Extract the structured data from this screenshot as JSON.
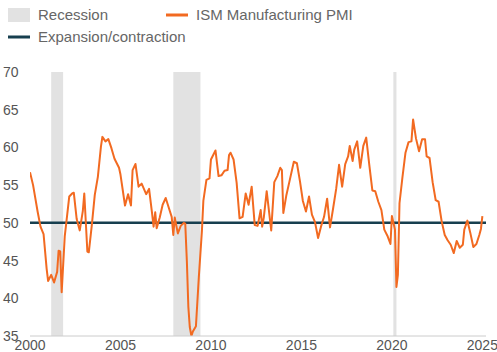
{
  "chart_data": {
    "type": "line",
    "xlim": [
      2000,
      2025.2
    ],
    "xticks": [
      2000,
      2005,
      2010,
      2015,
      2020,
      2025
    ],
    "ylim": [
      35,
      70
    ],
    "yticks": [
      35,
      40,
      45,
      50,
      55,
      60,
      65,
      70
    ],
    "grid": false,
    "legend": "top-left",
    "recessions": {
      "name": "Recession",
      "color": "#e2e2e2",
      "periods": [
        [
          2001.17,
          2001.83
        ],
        [
          2007.92,
          2009.42
        ],
        [
          2020.08,
          2020.25
        ]
      ]
    },
    "reference_line": {
      "name": "Expansion/contraction",
      "value": 50,
      "color": "#173f4f"
    },
    "series": [
      {
        "name": "ISM Manufacturing PMI",
        "color": "#f26a21",
        "x": [
          2000.0,
          2000.17,
          2000.42,
          2000.58,
          2000.75,
          2000.92,
          2001.0,
          2001.17,
          2001.33,
          2001.5,
          2001.58,
          2001.67,
          2001.75,
          2001.92,
          2002.0,
          2002.17,
          2002.33,
          2002.42,
          2002.58,
          2002.75,
          2002.92,
          2003.0,
          2003.17,
          2003.25,
          2003.42,
          2003.58,
          2003.75,
          2003.92,
          2004.0,
          2004.17,
          2004.33,
          2004.5,
          2004.67,
          2004.92,
          2005.0,
          2005.25,
          2005.42,
          2005.58,
          2005.67,
          2005.83,
          2006.0,
          2006.17,
          2006.42,
          2006.58,
          2006.75,
          2006.83,
          2006.92,
          2007.0,
          2007.17,
          2007.33,
          2007.5,
          2007.67,
          2007.83,
          2007.92,
          2008.0,
          2008.17,
          2008.33,
          2008.5,
          2008.58,
          2008.67,
          2008.75,
          2008.83,
          2008.92,
          2009.0,
          2009.17,
          2009.33,
          2009.5,
          2009.58,
          2009.75,
          2009.92,
          2010.0,
          2010.25,
          2010.42,
          2010.58,
          2010.75,
          2010.92,
          2011.0,
          2011.08,
          2011.25,
          2011.42,
          2011.58,
          2011.75,
          2011.92,
          2012.08,
          2012.25,
          2012.42,
          2012.58,
          2012.75,
          2012.83,
          2012.92,
          2013.08,
          2013.33,
          2013.5,
          2013.67,
          2013.83,
          2013.92,
          2014.0,
          2014.17,
          2014.33,
          2014.58,
          2014.75,
          2014.92,
          2015.08,
          2015.25,
          2015.42,
          2015.58,
          2015.75,
          2015.92,
          2016.08,
          2016.25,
          2016.42,
          2016.58,
          2016.75,
          2016.92,
          2017.08,
          2017.25,
          2017.42,
          2017.58,
          2017.67,
          2017.83,
          2017.92,
          2018.08,
          2018.25,
          2018.42,
          2018.58,
          2018.75,
          2018.92,
          2019.08,
          2019.25,
          2019.42,
          2019.58,
          2019.75,
          2019.92,
          2020.0,
          2020.17,
          2020.25,
          2020.33,
          2020.42,
          2020.58,
          2020.75,
          2020.92,
          2021.08,
          2021.17,
          2021.33,
          2021.5,
          2021.67,
          2021.83,
          2021.92,
          2022.08,
          2022.25,
          2022.42,
          2022.58,
          2022.75,
          2022.92,
          2023.08,
          2023.25,
          2023.42,
          2023.58,
          2023.75,
          2023.92,
          2024.0,
          2024.17,
          2024.33,
          2024.5,
          2024.67,
          2024.83,
          2024.92,
          2025.0
        ],
        "values": [
          56.7,
          55.0,
          51.5,
          49.5,
          48.5,
          43.9,
          42.3,
          43.1,
          42.1,
          43.5,
          46.3,
          46.2,
          40.8,
          48.2,
          49.9,
          53.5,
          53.9,
          54.0,
          50.5,
          49.0,
          51.6,
          53.9,
          46.2,
          46.1,
          49.8,
          53.7,
          56.1,
          60.1,
          61.4,
          60.8,
          61.1,
          59.9,
          58.5,
          57.3,
          56.4,
          52.3,
          53.8,
          52.3,
          57.0,
          57.8,
          54.8,
          55.2,
          53.8,
          54.5,
          51.2,
          49.5,
          51.4,
          49.3,
          50.7,
          52.4,
          53.3,
          52.0,
          50.8,
          48.4,
          50.7,
          48.6,
          49.6,
          50.0,
          49.9,
          44.8,
          38.9,
          36.2,
          35.0,
          35.6,
          36.3,
          42.8,
          48.9,
          52.9,
          55.7,
          55.9,
          58.4,
          59.6,
          56.2,
          56.3,
          56.9,
          57.0,
          59.0,
          59.3,
          58.4,
          55.3,
          50.6,
          50.8,
          53.9,
          52.4,
          54.8,
          49.7,
          49.6,
          51.7,
          49.5,
          50.7,
          54.2,
          49.0,
          55.4,
          56.2,
          57.3,
          57.0,
          51.3,
          53.7,
          55.4,
          58.1,
          57.9,
          55.5,
          52.9,
          51.5,
          53.5,
          51.1,
          50.1,
          48.0,
          49.5,
          50.8,
          53.2,
          49.4,
          51.9,
          54.5,
          57.7,
          54.8,
          57.8,
          58.8,
          60.2,
          58.2,
          59.7,
          60.8,
          57.3,
          60.2,
          61.3,
          57.7,
          54.3,
          54.2,
          52.8,
          51.7,
          49.1,
          48.3,
          47.2,
          50.9,
          49.1,
          41.5,
          43.1,
          52.6,
          56.0,
          59.3,
          60.7,
          60.8,
          63.7,
          61.2,
          59.5,
          61.1,
          61.1,
          58.8,
          58.6,
          55.4,
          53.0,
          52.8,
          50.2,
          48.4,
          47.7,
          47.1,
          46.0,
          47.6,
          46.7,
          47.1,
          49.1,
          50.3,
          48.7,
          46.8,
          47.2,
          48.4,
          49.2,
          50.9
        ]
      }
    ]
  }
}
